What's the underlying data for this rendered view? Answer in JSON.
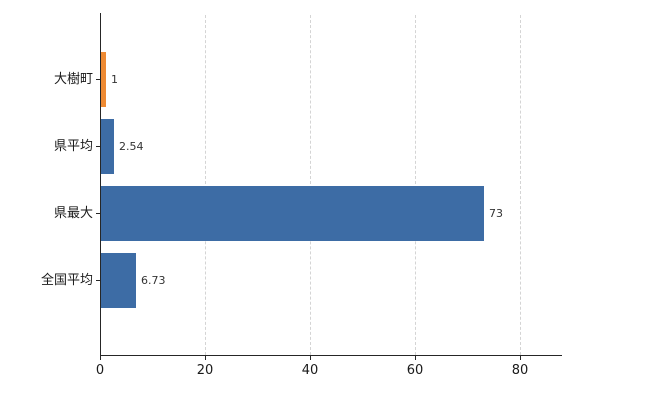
{
  "chart_data": {
    "type": "bar",
    "orientation": "horizontal",
    "title": "",
    "xlabel": "",
    "ylabel": "",
    "categories": [
      "大樹町",
      "県平均",
      "県最大",
      "全国平均"
    ],
    "values": [
      1,
      2.54,
      73,
      6.73
    ],
    "value_labels": [
      "1",
      "2.54",
      "73",
      "6.73"
    ],
    "bar_colors": [
      "#ee8a33",
      "#3d6ca5",
      "#3d6ca5",
      "#3d6ca5"
    ],
    "x_ticks": [
      0,
      20,
      40,
      60,
      80
    ],
    "x_tick_labels": [
      "0",
      "20",
      "40",
      "60",
      "80"
    ],
    "xlim": [
      0,
      88
    ],
    "grid": "dashed-vertical",
    "legend": "none",
    "background_color": "#ffffff",
    "axis_color": "#262626"
  }
}
